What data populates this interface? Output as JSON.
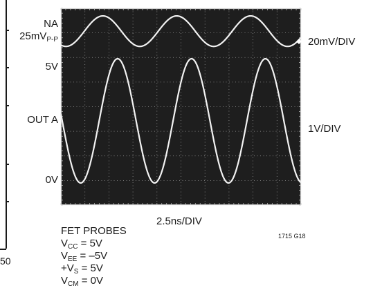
{
  "chart_data": {
    "type": "line",
    "time_scale": "2.5ns/DIV",
    "divisions": {
      "x": 10,
      "y": 8
    },
    "grid": true,
    "background_color": "#1e1e1e",
    "trace_color": "#f2f2f2",
    "channels": [
      {
        "name": "NA",
        "amplitude_label": "25mV",
        "amplitude_sub": "P-P",
        "scale": "20mV/DIV",
        "waveform": "sine",
        "periods_in_screen": 3.25,
        "center_div_from_top": 0.93,
        "amplitude_div": 0.62
      },
      {
        "name": "OUT A",
        "level_high": "5V",
        "level_low": "0V",
        "scale": "1V/DIV",
        "waveform": "sine",
        "periods_in_screen": 3.25,
        "high_div_from_top": 2.05,
        "low_div_from_top": 7.1
      }
    ],
    "figure_id": "1715 G18",
    "conditions": {
      "header": "FET PROBES",
      "lines": [
        {
          "pre": "V",
          "sub": "CC",
          "post": " = 5V"
        },
        {
          "pre": "V",
          "sub": "EE",
          "post": " = –5V"
        },
        {
          "pre": "+V",
          "sub": "S",
          "post": " = 5V"
        },
        {
          "pre": "V",
          "sub": "CM",
          "post": " = 0V"
        }
      ]
    }
  },
  "left_fragment": {
    "axis_label": "50"
  }
}
